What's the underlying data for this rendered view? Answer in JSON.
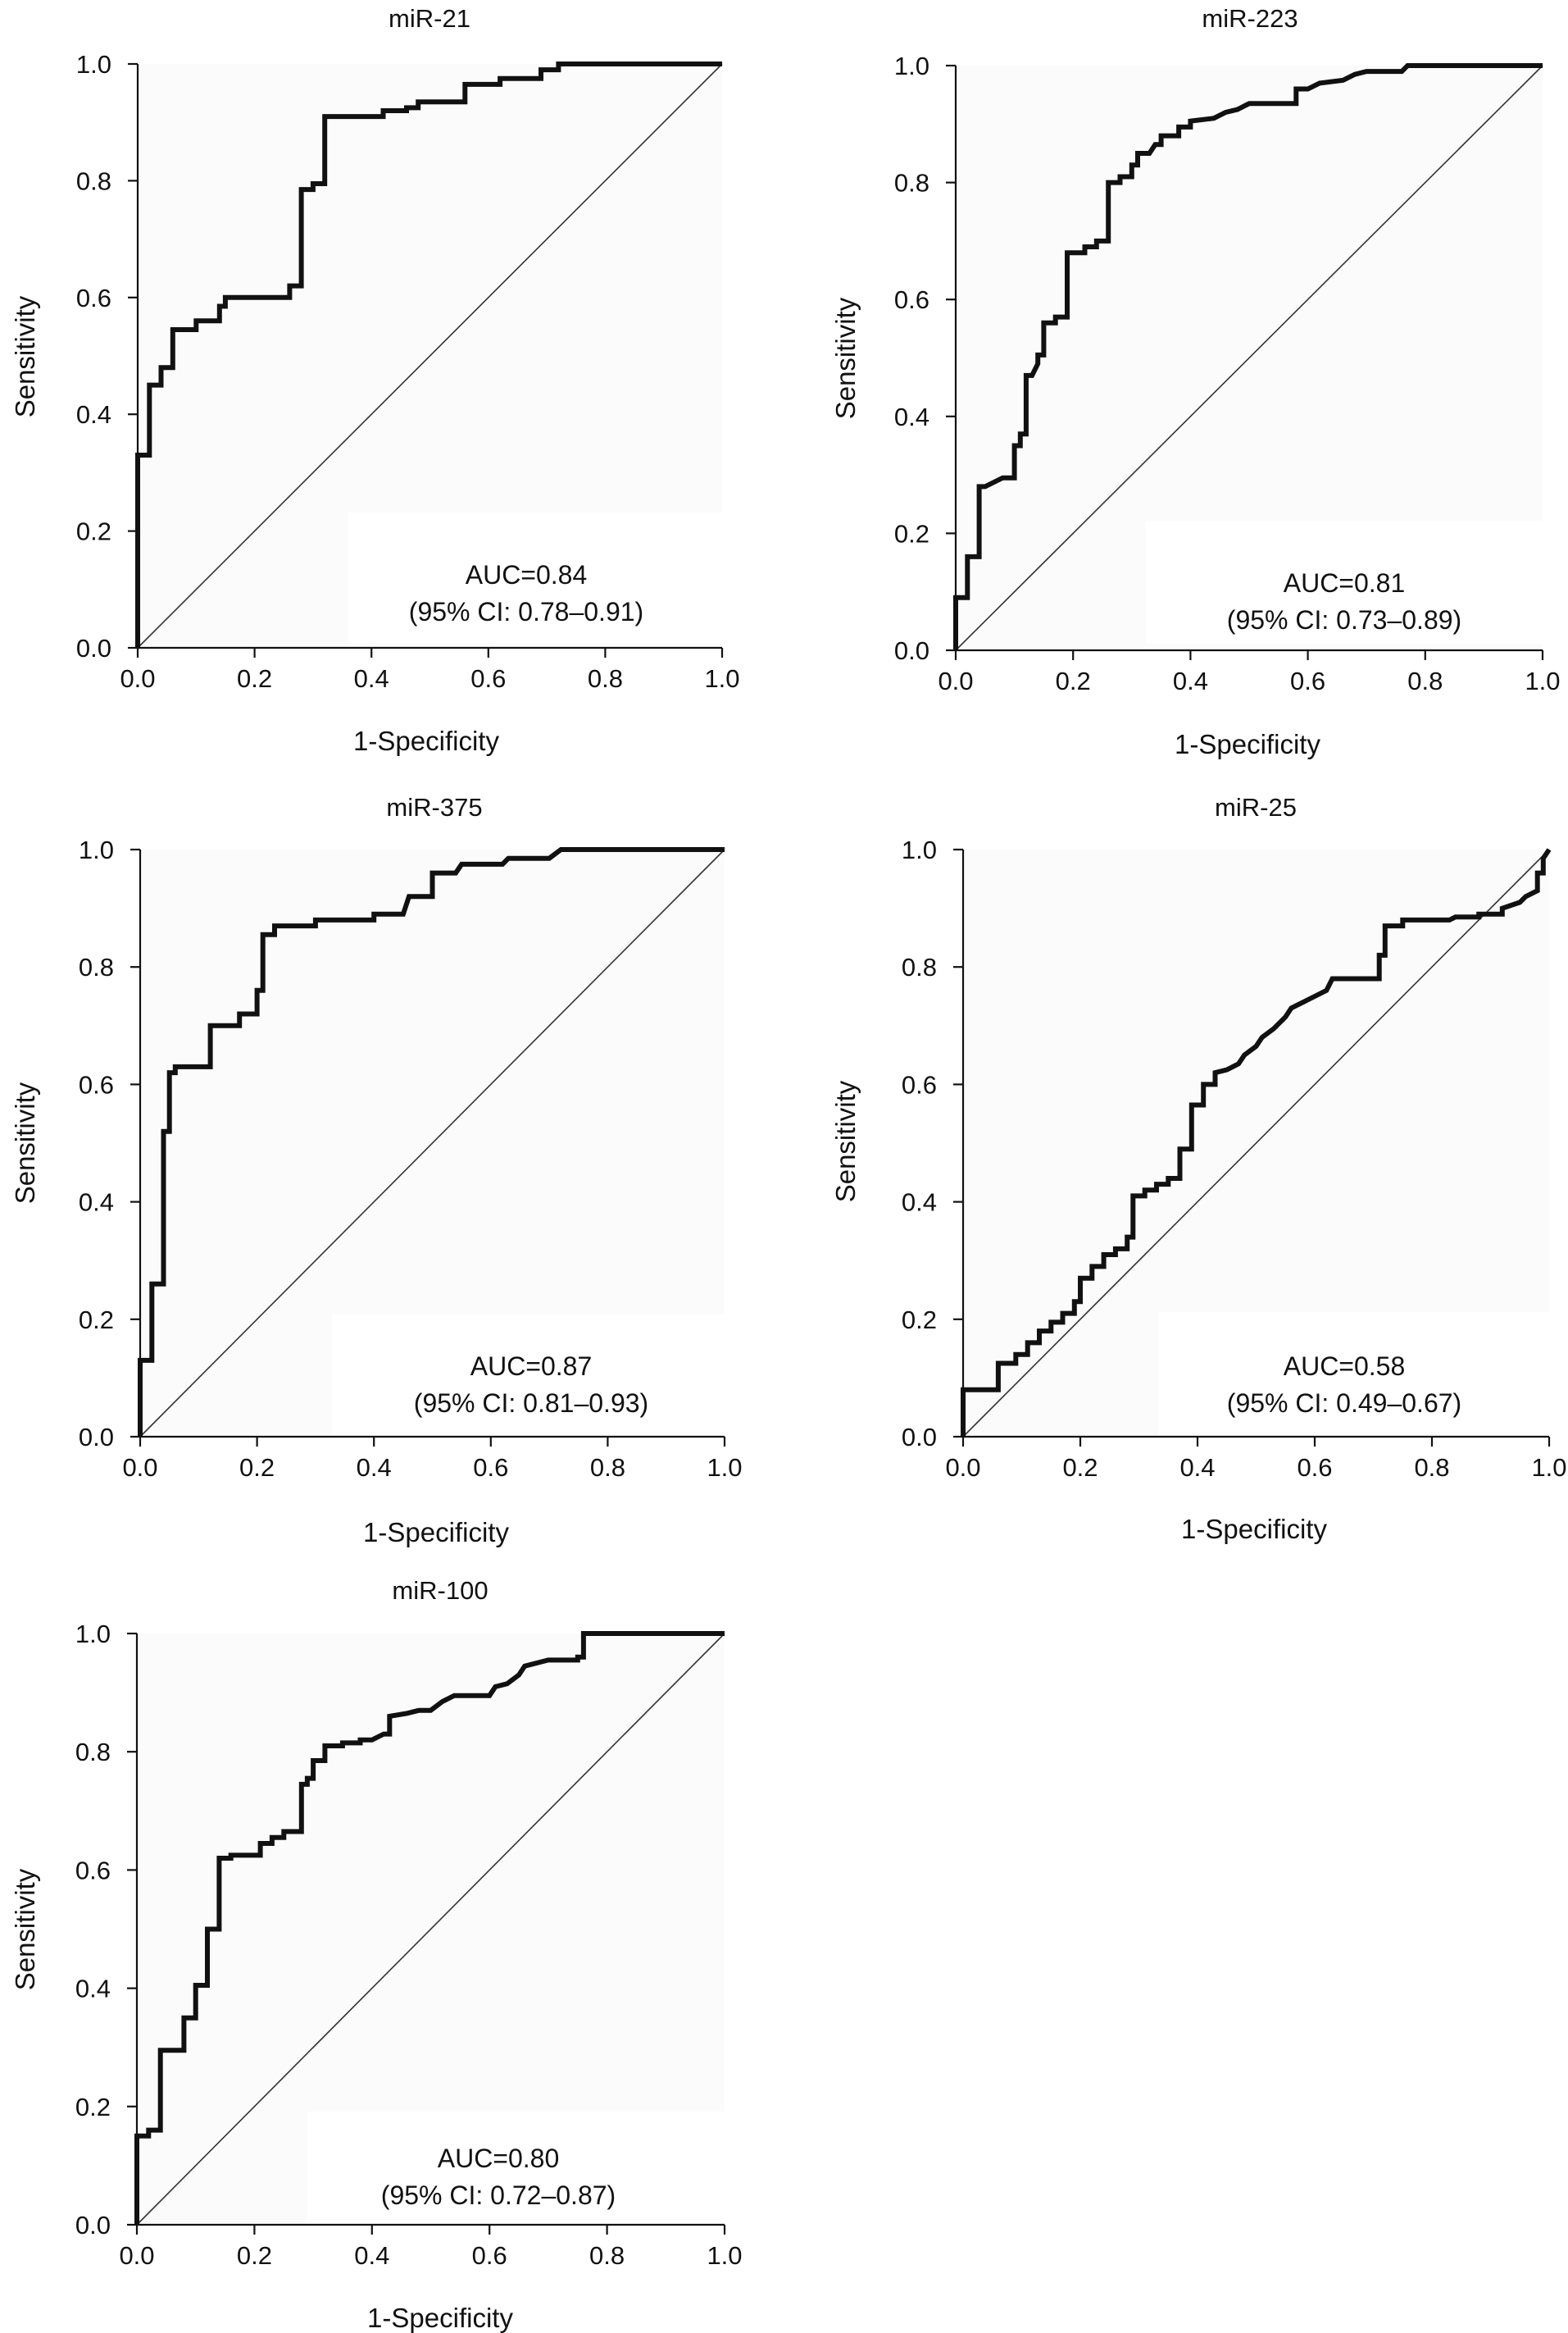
{
  "chart_data": [
    {
      "type": "line",
      "title": "miR-21",
      "xlabel": "1-Specificity",
      "ylabel": "Sensitivity",
      "xlim": [
        0,
        1
      ],
      "ylim": [
        0,
        1
      ],
      "xticks": [
        "0.0",
        "0.2",
        "0.4",
        "0.6",
        "0.8",
        "1.0"
      ],
      "yticks": [
        "0.0",
        "0.2",
        "0.4",
        "0.6",
        "0.8",
        "1.0"
      ],
      "auc_label": "AUC=0.84",
      "ci_label": "(95% CI: 0.78–0.91)",
      "reference_line": "diagonal",
      "roc": [
        [
          0,
          0
        ],
        [
          0,
          0.33
        ],
        [
          0.02,
          0.33
        ],
        [
          0.02,
          0.45
        ],
        [
          0.04,
          0.45
        ],
        [
          0.04,
          0.48
        ],
        [
          0.06,
          0.48
        ],
        [
          0.06,
          0.545
        ],
        [
          0.1,
          0.545
        ],
        [
          0.1,
          0.56
        ],
        [
          0.14,
          0.56
        ],
        [
          0.14,
          0.585
        ],
        [
          0.15,
          0.585
        ],
        [
          0.15,
          0.6
        ],
        [
          0.26,
          0.6
        ],
        [
          0.26,
          0.62
        ],
        [
          0.28,
          0.62
        ],
        [
          0.28,
          0.785
        ],
        [
          0.3,
          0.785
        ],
        [
          0.3,
          0.795
        ],
        [
          0.32,
          0.795
        ],
        [
          0.32,
          0.91
        ],
        [
          0.42,
          0.91
        ],
        [
          0.42,
          0.92
        ],
        [
          0.46,
          0.92
        ],
        [
          0.46,
          0.925
        ],
        [
          0.48,
          0.925
        ],
        [
          0.48,
          0.935
        ],
        [
          0.56,
          0.935
        ],
        [
          0.56,
          0.965
        ],
        [
          0.62,
          0.965
        ],
        [
          0.62,
          0.975
        ],
        [
          0.69,
          0.975
        ],
        [
          0.69,
          0.99
        ],
        [
          0.72,
          0.99
        ],
        [
          0.72,
          1.0
        ],
        [
          1.0,
          1.0
        ]
      ]
    },
    {
      "type": "line",
      "title": "miR-223",
      "xlabel": "1-Specificity",
      "ylabel": "Sensitivity",
      "xlim": [
        0,
        1
      ],
      "ylim": [
        0,
        1
      ],
      "xticks": [
        "0.0",
        "0.2",
        "0.4",
        "0.6",
        "0.8",
        "1.0"
      ],
      "yticks": [
        "0.0",
        "0.2",
        "0.4",
        "0.6",
        "0.8",
        "1.0"
      ],
      "auc_label": "AUC=0.81",
      "ci_label": "(95% CI: 0.73–0.89)",
      "reference_line": "diagonal",
      "roc": [
        [
          0,
          0
        ],
        [
          0,
          0.09
        ],
        [
          0.02,
          0.09
        ],
        [
          0.02,
          0.16
        ],
        [
          0.04,
          0.16
        ],
        [
          0.04,
          0.28
        ],
        [
          0.05,
          0.28
        ],
        [
          0.08,
          0.295
        ],
        [
          0.1,
          0.295
        ],
        [
          0.1,
          0.35
        ],
        [
          0.11,
          0.35
        ],
        [
          0.11,
          0.37
        ],
        [
          0.12,
          0.37
        ],
        [
          0.12,
          0.47
        ],
        [
          0.13,
          0.47
        ],
        [
          0.14,
          0.49
        ],
        [
          0.14,
          0.505
        ],
        [
          0.15,
          0.505
        ],
        [
          0.15,
          0.56
        ],
        [
          0.17,
          0.56
        ],
        [
          0.17,
          0.57
        ],
        [
          0.19,
          0.57
        ],
        [
          0.19,
          0.68
        ],
        [
          0.22,
          0.68
        ],
        [
          0.22,
          0.69
        ],
        [
          0.24,
          0.69
        ],
        [
          0.24,
          0.7
        ],
        [
          0.26,
          0.7
        ],
        [
          0.26,
          0.8
        ],
        [
          0.28,
          0.8
        ],
        [
          0.28,
          0.81
        ],
        [
          0.3,
          0.81
        ],
        [
          0.3,
          0.83
        ],
        [
          0.31,
          0.83
        ],
        [
          0.31,
          0.85
        ],
        [
          0.33,
          0.85
        ],
        [
          0.34,
          0.865
        ],
        [
          0.35,
          0.865
        ],
        [
          0.35,
          0.88
        ],
        [
          0.38,
          0.88
        ],
        [
          0.38,
          0.895
        ],
        [
          0.4,
          0.895
        ],
        [
          0.4,
          0.905
        ],
        [
          0.44,
          0.91
        ],
        [
          0.46,
          0.92
        ],
        [
          0.48,
          0.925
        ],
        [
          0.5,
          0.935
        ],
        [
          0.58,
          0.935
        ],
        [
          0.58,
          0.96
        ],
        [
          0.6,
          0.96
        ],
        [
          0.62,
          0.97
        ],
        [
          0.66,
          0.975
        ],
        [
          0.68,
          0.985
        ],
        [
          0.7,
          0.99
        ],
        [
          0.76,
          0.99
        ],
        [
          0.77,
          1.0
        ],
        [
          1.0,
          1.0
        ]
      ]
    },
    {
      "type": "line",
      "title": "miR-375",
      "xlabel": "1-Specificity",
      "ylabel": "Sensitivity",
      "xlim": [
        0,
        1
      ],
      "ylim": [
        0,
        1
      ],
      "xticks": [
        "0.0",
        "0.2",
        "0.4",
        "0.6",
        "0.8",
        "1.0"
      ],
      "yticks": [
        "0.0",
        "0.2",
        "0.4",
        "0.6",
        "0.8",
        "1.0"
      ],
      "auc_label": "AUC=0.87",
      "ci_label": "(95% CI: 0.81–0.93)",
      "reference_line": "diagonal",
      "roc": [
        [
          0,
          0
        ],
        [
          0,
          0.13
        ],
        [
          0.02,
          0.13
        ],
        [
          0.02,
          0.26
        ],
        [
          0.04,
          0.26
        ],
        [
          0.04,
          0.52
        ],
        [
          0.05,
          0.52
        ],
        [
          0.05,
          0.62
        ],
        [
          0.06,
          0.62
        ],
        [
          0.06,
          0.63
        ],
        [
          0.09,
          0.63
        ],
        [
          0.12,
          0.63
        ],
        [
          0.12,
          0.7
        ],
        [
          0.17,
          0.7
        ],
        [
          0.17,
          0.72
        ],
        [
          0.2,
          0.72
        ],
        [
          0.2,
          0.76
        ],
        [
          0.21,
          0.76
        ],
        [
          0.21,
          0.855
        ],
        [
          0.23,
          0.855
        ],
        [
          0.23,
          0.87
        ],
        [
          0.3,
          0.87
        ],
        [
          0.3,
          0.88
        ],
        [
          0.4,
          0.88
        ],
        [
          0.4,
          0.89
        ],
        [
          0.45,
          0.89
        ],
        [
          0.46,
          0.92
        ],
        [
          0.5,
          0.92
        ],
        [
          0.5,
          0.96
        ],
        [
          0.54,
          0.96
        ],
        [
          0.55,
          0.975
        ],
        [
          0.62,
          0.975
        ],
        [
          0.63,
          0.985
        ],
        [
          0.7,
          0.985
        ],
        [
          0.72,
          1.0
        ],
        [
          1.0,
          1.0
        ]
      ]
    },
    {
      "type": "line",
      "title": "miR-25",
      "xlabel": "1-Specificity",
      "ylabel": "Sensitivity",
      "xlim": [
        0,
        1
      ],
      "ylim": [
        0,
        1
      ],
      "xticks": [
        "0.0",
        "0.2",
        "0.4",
        "0.6",
        "0.8",
        "1.0"
      ],
      "yticks": [
        "0.0",
        "0.2",
        "0.4",
        "0.6",
        "0.8",
        "1.0"
      ],
      "auc_label": "AUC=0.58",
      "ci_label": "(95% CI: 0.49–0.67)",
      "reference_line": "diagonal",
      "roc": [
        [
          0,
          0
        ],
        [
          0,
          0.08
        ],
        [
          0.06,
          0.08
        ],
        [
          0.06,
          0.125
        ],
        [
          0.09,
          0.125
        ],
        [
          0.09,
          0.14
        ],
        [
          0.11,
          0.14
        ],
        [
          0.11,
          0.16
        ],
        [
          0.13,
          0.16
        ],
        [
          0.13,
          0.18
        ],
        [
          0.15,
          0.18
        ],
        [
          0.15,
          0.195
        ],
        [
          0.17,
          0.195
        ],
        [
          0.17,
          0.21
        ],
        [
          0.19,
          0.21
        ],
        [
          0.19,
          0.23
        ],
        [
          0.2,
          0.23
        ],
        [
          0.2,
          0.27
        ],
        [
          0.22,
          0.27
        ],
        [
          0.22,
          0.29
        ],
        [
          0.24,
          0.29
        ],
        [
          0.24,
          0.31
        ],
        [
          0.26,
          0.31
        ],
        [
          0.26,
          0.32
        ],
        [
          0.28,
          0.32
        ],
        [
          0.28,
          0.34
        ],
        [
          0.29,
          0.34
        ],
        [
          0.29,
          0.41
        ],
        [
          0.31,
          0.41
        ],
        [
          0.31,
          0.42
        ],
        [
          0.33,
          0.42
        ],
        [
          0.33,
          0.43
        ],
        [
          0.35,
          0.43
        ],
        [
          0.35,
          0.44
        ],
        [
          0.37,
          0.44
        ],
        [
          0.37,
          0.49
        ],
        [
          0.39,
          0.49
        ],
        [
          0.39,
          0.565
        ],
        [
          0.41,
          0.565
        ],
        [
          0.41,
          0.6
        ],
        [
          0.43,
          0.6
        ],
        [
          0.43,
          0.62
        ],
        [
          0.45,
          0.625
        ],
        [
          0.47,
          0.635
        ],
        [
          0.48,
          0.65
        ],
        [
          0.5,
          0.665
        ],
        [
          0.51,
          0.68
        ],
        [
          0.53,
          0.695
        ],
        [
          0.55,
          0.715
        ],
        [
          0.56,
          0.73
        ],
        [
          0.58,
          0.74
        ],
        [
          0.6,
          0.75
        ],
        [
          0.62,
          0.76
        ],
        [
          0.63,
          0.78
        ],
        [
          0.71,
          0.78
        ],
        [
          0.71,
          0.82
        ],
        [
          0.72,
          0.82
        ],
        [
          0.72,
          0.87
        ],
        [
          0.75,
          0.87
        ],
        [
          0.75,
          0.88
        ],
        [
          0.83,
          0.88
        ],
        [
          0.84,
          0.885
        ],
        [
          0.88,
          0.885
        ],
        [
          0.88,
          0.89
        ],
        [
          0.92,
          0.89
        ],
        [
          0.92,
          0.9
        ],
        [
          0.95,
          0.91
        ],
        [
          0.96,
          0.92
        ],
        [
          0.98,
          0.93
        ],
        [
          0.98,
          0.96
        ],
        [
          0.99,
          0.96
        ],
        [
          0.99,
          0.985
        ],
        [
          1.0,
          1.0
        ]
      ]
    },
    {
      "type": "line",
      "title": "miR-100",
      "xlabel": "1-Specificity",
      "ylabel": "Sensitivity",
      "xlim": [
        0,
        1
      ],
      "ylim": [
        0,
        1
      ],
      "xticks": [
        "0.0",
        "0.2",
        "0.4",
        "0.6",
        "0.8",
        "1.0"
      ],
      "yticks": [
        "0.0",
        "0.2",
        "0.4",
        "0.6",
        "0.8",
        "1.0"
      ],
      "auc_label": "AUC=0.80",
      "ci_label": "(95% CI: 0.72–0.87)",
      "reference_line": "diagonal",
      "roc": [
        [
          0,
          0
        ],
        [
          0,
          0.15
        ],
        [
          0.02,
          0.15
        ],
        [
          0.02,
          0.16
        ],
        [
          0.04,
          0.16
        ],
        [
          0.04,
          0.295
        ],
        [
          0.08,
          0.295
        ],
        [
          0.08,
          0.35
        ],
        [
          0.1,
          0.35
        ],
        [
          0.1,
          0.405
        ],
        [
          0.12,
          0.405
        ],
        [
          0.12,
          0.5
        ],
        [
          0.14,
          0.5
        ],
        [
          0.14,
          0.62
        ],
        [
          0.16,
          0.62
        ],
        [
          0.16,
          0.625
        ],
        [
          0.21,
          0.625
        ],
        [
          0.21,
          0.645
        ],
        [
          0.23,
          0.645
        ],
        [
          0.23,
          0.655
        ],
        [
          0.25,
          0.655
        ],
        [
          0.25,
          0.665
        ],
        [
          0.28,
          0.665
        ],
        [
          0.28,
          0.745
        ],
        [
          0.29,
          0.745
        ],
        [
          0.29,
          0.755
        ],
        [
          0.3,
          0.755
        ],
        [
          0.3,
          0.785
        ],
        [
          0.32,
          0.785
        ],
        [
          0.32,
          0.81
        ],
        [
          0.35,
          0.81
        ],
        [
          0.35,
          0.815
        ],
        [
          0.38,
          0.815
        ],
        [
          0.38,
          0.82
        ],
        [
          0.4,
          0.82
        ],
        [
          0.42,
          0.83
        ],
        [
          0.43,
          0.83
        ],
        [
          0.43,
          0.86
        ],
        [
          0.46,
          0.865
        ],
        [
          0.48,
          0.87
        ],
        [
          0.5,
          0.87
        ],
        [
          0.52,
          0.885
        ],
        [
          0.54,
          0.895
        ],
        [
          0.6,
          0.895
        ],
        [
          0.61,
          0.91
        ],
        [
          0.63,
          0.915
        ],
        [
          0.65,
          0.93
        ],
        [
          0.66,
          0.945
        ],
        [
          0.7,
          0.955
        ],
        [
          0.75,
          0.955
        ],
        [
          0.75,
          0.96
        ],
        [
          0.76,
          0.96
        ],
        [
          0.76,
          1.0
        ],
        [
          1.0,
          1.0
        ]
      ]
    }
  ]
}
